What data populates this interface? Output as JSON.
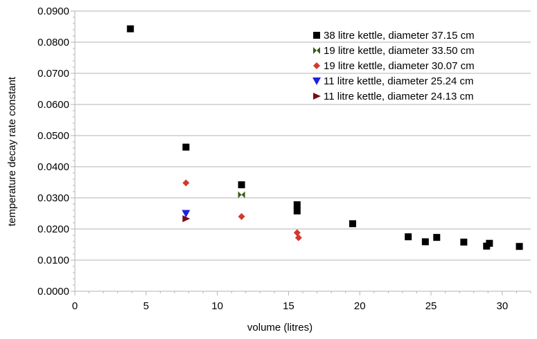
{
  "chart_data": {
    "type": "scatter",
    "title": "",
    "xlabel": "volume (litres)",
    "ylabel": "temperature decay rate constant",
    "xlim": [
      0,
      32
    ],
    "ylim": [
      0,
      0.09
    ],
    "xticks": [
      0,
      5,
      10,
      15,
      20,
      25,
      30
    ],
    "xtick_labels": [
      "0",
      "5",
      "10",
      "15",
      "20",
      "25",
      "30"
    ],
    "yticks": [
      0,
      0.01,
      0.02,
      0.03,
      0.04,
      0.05,
      0.06,
      0.07,
      0.08,
      0.09
    ],
    "ytick_labels": [
      "0.0000",
      "0.0100",
      "0.0200",
      "0.0300",
      "0.0400",
      "0.0500",
      "0.0600",
      "0.0700",
      "0.0800",
      "0.0900"
    ],
    "grid": "horizontal",
    "legend_position": "top-right",
    "series": [
      {
        "name": "38 litre kettle, diameter 37.15 cm",
        "marker": "square",
        "color": "#000000",
        "x": [
          3.9,
          7.8,
          11.7,
          15.6,
          15.6,
          19.5,
          23.4,
          24.6,
          25.4,
          27.3,
          28.9,
          29.1,
          31.2
        ],
        "y": [
          0.0843,
          0.0463,
          0.0342,
          0.0278,
          0.0258,
          0.0217,
          0.0175,
          0.0159,
          0.0173,
          0.0158,
          0.0145,
          0.0154,
          0.0144
        ]
      },
      {
        "name": "19 litre kettle, diameter 33.50 cm",
        "marker": "bowtie",
        "color": "#3c5a14",
        "x": [
          11.7
        ],
        "y": [
          0.031
        ]
      },
      {
        "name": "19 litre kettle, diameter 30.07 cm",
        "marker": "diamond",
        "color": "#d03a2e",
        "x": [
          7.8,
          11.7,
          15.6,
          15.7
        ],
        "y": [
          0.0348,
          0.024,
          0.0188,
          0.0172
        ]
      },
      {
        "name": "11 litre kettle, diameter 25.24 cm",
        "marker": "triangle-down",
        "color": "#2020e0",
        "x": [
          7.8
        ],
        "y": [
          0.025
        ]
      },
      {
        "name": "11 litre kettle, diameter 24.13 cm",
        "marker": "triangle-right",
        "color": "#7a0a1a",
        "x": [
          7.8
        ],
        "y": [
          0.0233
        ]
      }
    ]
  }
}
